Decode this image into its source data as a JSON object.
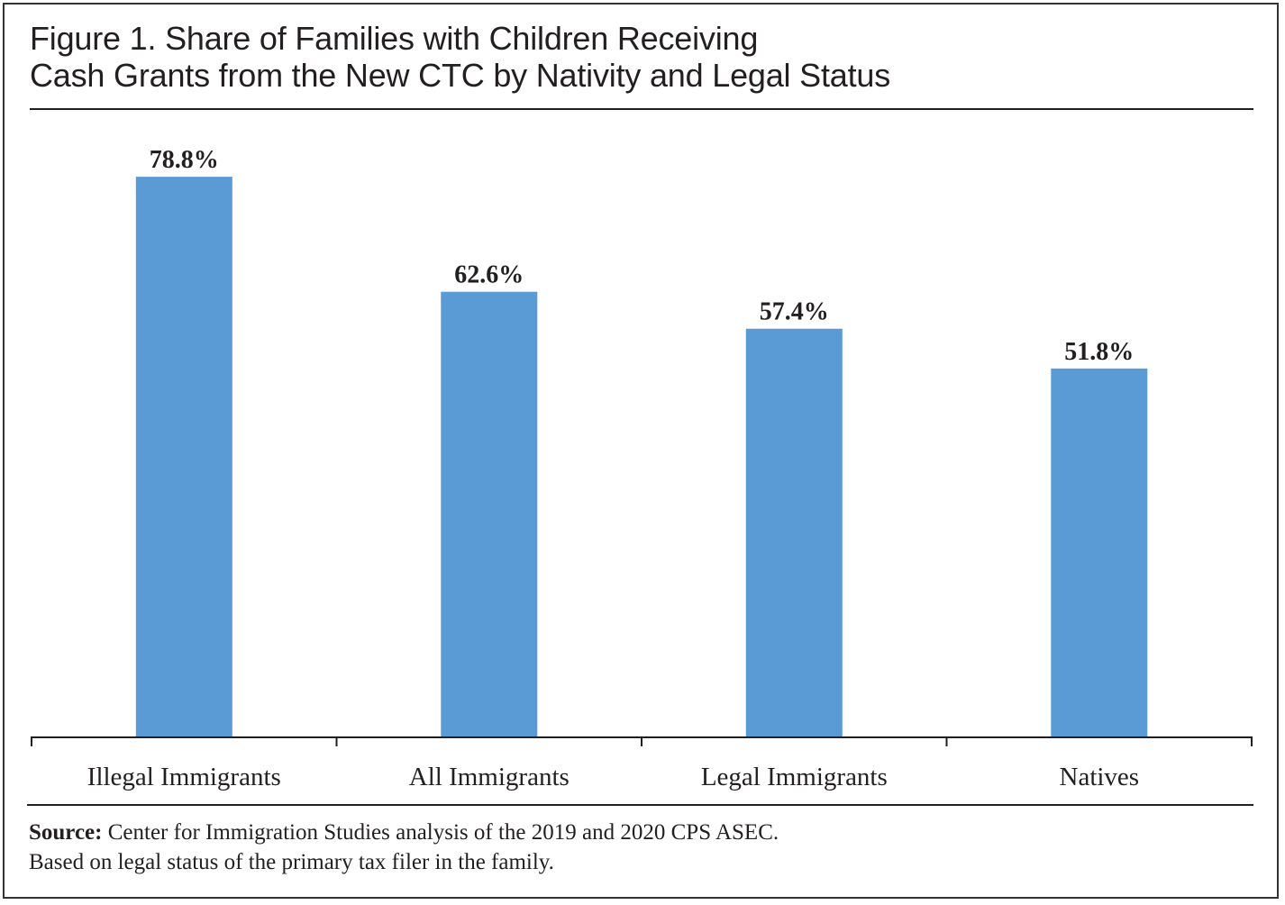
{
  "chart_data": {
    "type": "bar",
    "title": "Figure 1. Share of Families with Children Receiving Cash Grants from the New CTC by Nativity and Legal Status",
    "title_lines": [
      "Figure 1. Share of Families with Children Receiving",
      "Cash Grants from the New CTC by Nativity and Legal Status"
    ],
    "categories": [
      "Illegal Immigrants",
      "All Immigrants",
      "Legal Immigrants",
      "Natives"
    ],
    "values": [
      78.8,
      62.6,
      57.4,
      51.8
    ],
    "data_labels": [
      "78.8%",
      "62.6%",
      "57.4%",
      "51.8%"
    ],
    "xlabel": "",
    "ylabel": "",
    "ylim": [
      0,
      100
    ],
    "y_axis_visible": false,
    "grid": false,
    "legend": "none",
    "bar_color": "#5b9bd5",
    "text_color": "#231f20"
  },
  "footer": {
    "source_label": "Source:",
    "source_text": " Center for Immigration Studies analysis of the 2019 and 2020 CPS ASEC.",
    "note": "Based on legal status of the primary tax filer in the family."
  }
}
